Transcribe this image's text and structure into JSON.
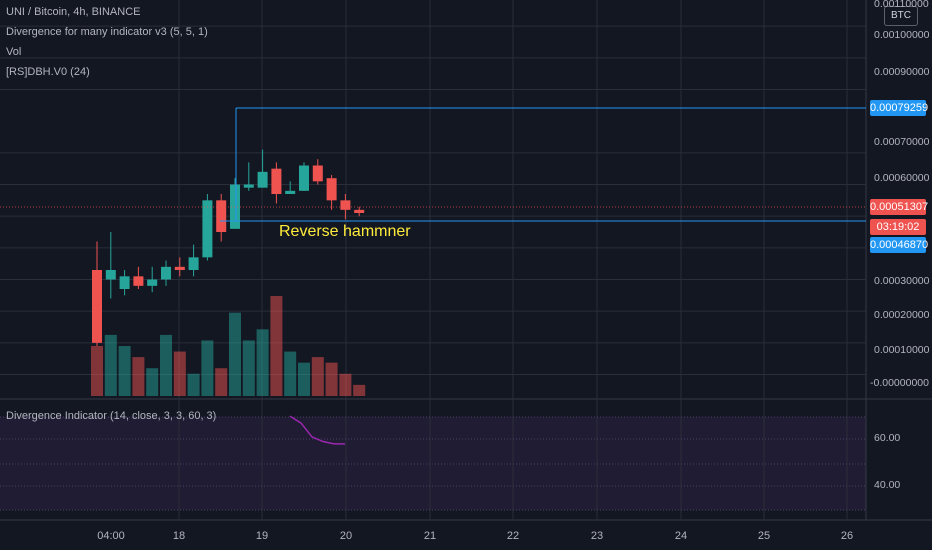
{
  "legend": {
    "symbol": "UNI / Bitcoin, 4h, BINANCE",
    "indicator1": "Divergence for many indicator v3 (5, 5, 1)",
    "indicator2": "Vol",
    "indicator3": "[RS]DBH.V0 (24)"
  },
  "currency_badge": "BTC",
  "annotation": "Reverse hammner",
  "sub_pane": {
    "title": "Divergence Indicator (14, close, 3, 3, 60, 3)"
  },
  "price_axis": {
    "ticks": [
      "0.00110000",
      "0.00100000",
      "0.00090000",
      "0.00070000",
      "0.00060000",
      "0.00030000",
      "0.00020000",
      "0.00010000",
      "-0.00000000"
    ],
    "tags": {
      "high": "0.00079259",
      "last": "0.00051307",
      "countdown": "03:19:02",
      "low": "0.00046870"
    }
  },
  "sub_axis": {
    "ticks": [
      "60.00",
      "40.00"
    ]
  },
  "time_axis": {
    "ticks": [
      "04:00",
      "18",
      "19",
      "20",
      "21",
      "22",
      "23",
      "24",
      "25",
      "26"
    ]
  },
  "colors": {
    "background": "#131722",
    "bull": "#26a69a",
    "bear": "#ef5350",
    "level_line": "#2196f3",
    "annotation": "#ffeb3b",
    "divergence_line": "#9c27b0"
  },
  "chart_data": {
    "type": "candlestick",
    "series_candles": [
      {
        "o": 3.3e-05,
        "h": 4.2e-05,
        "l": 9e-06,
        "c": 1e-05
      },
      {
        "o": 3e-05,
        "h": 4.5e-05,
        "l": 2.4e-05,
        "c": 3.3e-05
      },
      {
        "o": 2.7e-05,
        "h": 3.3e-05,
        "l": 2.5e-05,
        "c": 3.1e-05
      },
      {
        "o": 3.1e-05,
        "h": 3.4e-05,
        "l": 2.7e-05,
        "c": 2.8e-05
      },
      {
        "o": 2.8e-05,
        "h": 3.4e-05,
        "l": 2.6e-05,
        "c": 3e-05
      },
      {
        "o": 3e-05,
        "h": 3.6e-05,
        "l": 2.8e-05,
        "c": 3.4e-05
      },
      {
        "o": 3.4e-05,
        "h": 3.7e-05,
        "l": 3.1e-05,
        "c": 3.3e-05
      },
      {
        "o": 3.3e-05,
        "h": 4.1e-05,
        "l": 3.1e-05,
        "c": 3.7e-05
      },
      {
        "o": 3.7e-05,
        "h": 5.7e-05,
        "l": 3.6e-05,
        "c": 5.5e-05
      },
      {
        "o": 5.5e-05,
        "h": 5.7e-05,
        "l": 4.2e-05,
        "c": 4.5e-05
      },
      {
        "o": 4.6e-05,
        "h": 6.2e-05,
        "l": 4.6e-05,
        "c": 6e-05
      },
      {
        "o": 5.9e-05,
        "h": 6.7e-05,
        "l": 5.8e-05,
        "c": 6e-05
      },
      {
        "o": 5.9e-05,
        "h": 7.1e-05,
        "l": 5.9e-05,
        "c": 6.4e-05
      },
      {
        "o": 6.5e-05,
        "h": 6.7e-05,
        "l": 5.4e-05,
        "c": 5.7e-05
      },
      {
        "o": 5.7e-05,
        "h": 6.1e-05,
        "l": 5.7e-05,
        "c": 5.8e-05
      },
      {
        "o": 5.8e-05,
        "h": 6.7e-05,
        "l": 5.8e-05,
        "c": 6.6e-05
      },
      {
        "o": 6.6e-05,
        "h": 6.8e-05,
        "l": 6e-05,
        "c": 6.1e-05
      },
      {
        "o": 6.2e-05,
        "h": 6.3e-05,
        "l": 5.2e-05,
        "c": 5.5e-05
      },
      {
        "o": 5.5e-05,
        "h": 5.7e-05,
        "l": 4.9e-05,
        "c": 5.2e-05
      },
      {
        "o": 5.2e-05,
        "h": 5.3e-05,
        "l": 5e-05,
        "c": 5.1e-05
      }
    ],
    "volumes": [
      9,
      11,
      9,
      7,
      5,
      11,
      8,
      4,
      10,
      5,
      15,
      10,
      12,
      18,
      8,
      6,
      7,
      6,
      4,
      2
    ],
    "divergence_series": [
      73,
      70,
      64,
      62,
      61,
      61
    ],
    "price_range": [
      -3e-06,
      0.000117
    ],
    "sub_range": [
      28,
      80
    ],
    "levels": {
      "high": 0.00079259,
      "low": 0.0004687
    }
  }
}
